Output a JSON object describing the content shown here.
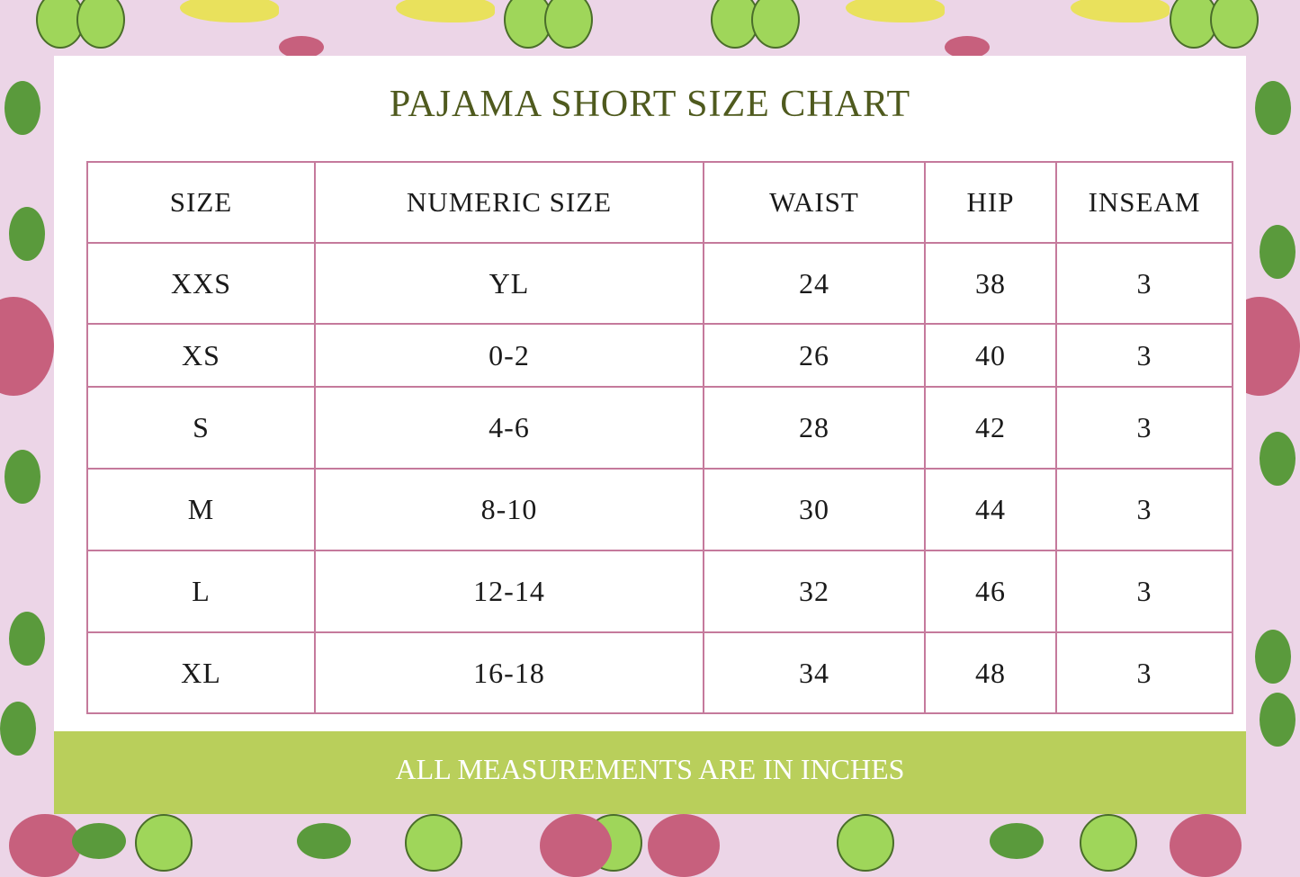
{
  "title": "PAJAMA SHORT SIZE CHART",
  "colors": {
    "title": "#4f5a1e",
    "border": "#c57a9c",
    "footer_bg": "#b9cf5b",
    "background": "#ecd5e7"
  },
  "table": {
    "headers": [
      "SIZE",
      "NUMERIC SIZE",
      "WAIST",
      "HIP",
      "INSEAM"
    ],
    "rows": [
      [
        "XXS",
        "YL",
        "24",
        "38",
        "3"
      ],
      [
        "XS",
        "0-2",
        "26",
        "40",
        "3"
      ],
      [
        "S",
        "4-6",
        "28",
        "42",
        "3"
      ],
      [
        "M",
        "8-10",
        "30",
        "44",
        "3"
      ],
      [
        "L",
        "12-14",
        "32",
        "46",
        "3"
      ],
      [
        "XL",
        "16-18",
        "34",
        "48",
        "3"
      ]
    ]
  },
  "footer": "ALL MEASUREMENTS ARE IN INCHES"
}
